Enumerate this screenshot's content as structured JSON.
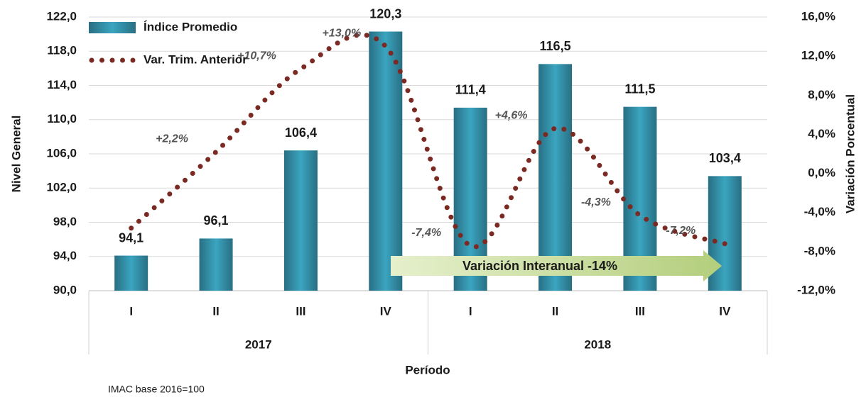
{
  "chart_data": {
    "type": "bar",
    "x_label": "Período",
    "y_label": "Nivel General",
    "y2_label": "Variación Porcentual",
    "footnote": "IMAC base 2016=100",
    "annotation": "Variación Interanual -14%",
    "categories": [
      "I",
      "II",
      "III",
      "IV",
      "I",
      "II",
      "III",
      "IV"
    ],
    "groups": [
      "2017",
      "2018"
    ],
    "ylim": [
      90,
      122
    ],
    "yticks": [
      {
        "value": 90,
        "label": "90,0"
      },
      {
        "value": 94,
        "label": "94,0"
      },
      {
        "value": 98,
        "label": "98,0"
      },
      {
        "value": 102,
        "label": "102,0"
      },
      {
        "value": 106,
        "label": "106,0"
      },
      {
        "value": 110,
        "label": "110,0"
      },
      {
        "value": 114,
        "label": "114,0"
      },
      {
        "value": 118,
        "label": "118,0"
      },
      {
        "value": 122,
        "label": "122,0"
      }
    ],
    "y2lim": [
      -12,
      16
    ],
    "y2ticks": [
      {
        "value": -12,
        "label": "-12,0%"
      },
      {
        "value": -8,
        "label": "-8,0%"
      },
      {
        "value": -4,
        "label": "-4,0%"
      },
      {
        "value": 0,
        "label": "0,0%"
      },
      {
        "value": 4,
        "label": "4,0%"
      },
      {
        "value": 8,
        "label": "8,0%"
      },
      {
        "value": 12,
        "label": "12,0%"
      },
      {
        "value": 16,
        "label": "16,0%"
      }
    ],
    "grid": true,
    "legend": "upper left",
    "series": [
      {
        "name": "Índice Promedio",
        "type": "bar",
        "color": "#2f8aa3",
        "values": [
          94.1,
          96.1,
          106.4,
          120.3,
          111.4,
          116.5,
          111.5,
          103.4
        ],
        "value_labels": [
          "94,1",
          "96,1",
          "106,4",
          "120,3",
          "111,4",
          "116,5",
          "111,5",
          "103,4"
        ]
      },
      {
        "name": "Var. Trim. Anterior",
        "type": "line",
        "axis": "y2",
        "color": "#7a2a22",
        "values": [
          -5.6,
          2.2,
          10.7,
          13.0,
          -7.4,
          4.6,
          -4.3,
          -7.2
        ],
        "value_labels": [
          null,
          "+2,2%",
          "+10,7%",
          "+13,0%",
          "-7,4%",
          "+4,6%",
          "-4,3%",
          "-7,2%"
        ]
      }
    ]
  }
}
